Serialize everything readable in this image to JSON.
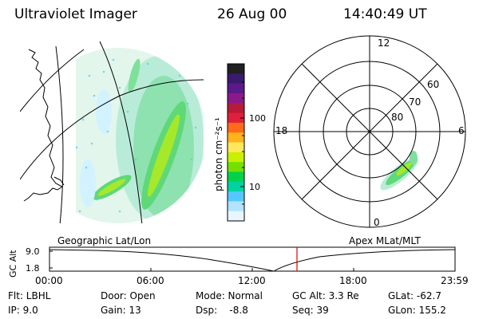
{
  "header": {
    "instrument": "Ultraviolet Imager",
    "date": "26 Aug 00",
    "time": "14:40:49 UT"
  },
  "colorbar": {
    "unit_label": "photon cm⁻²s⁻¹",
    "ticks": [
      "100",
      "10"
    ],
    "colors": [
      "#202020",
      "#3a1a6a",
      "#5a1a8a",
      "#8a1a8a",
      "#b81a3a",
      "#e0203a",
      "#ff6a1a",
      "#ffb21a",
      "#ffe85a",
      "#c8f000",
      "#74e000",
      "#00d24a",
      "#00d2a0",
      "#55c8ff",
      "#b0e4ff",
      "#e8f6ff"
    ]
  },
  "left_panel": {
    "caption": "Geographic Lat/Lon"
  },
  "right_panel": {
    "caption": "Apex MLat/MLT",
    "mlt_labels": [
      "12",
      "18",
      "6",
      "0"
    ],
    "lat_labels": [
      "60",
      "70",
      "80"
    ]
  },
  "alt_plot": {
    "ylabel": "GC Alt",
    "yticks": [
      "9.0",
      "1.8"
    ],
    "xticks": [
      "00:00",
      "06:00",
      "12:00",
      "18:00",
      "23:59"
    ],
    "marker_color": "#e00000"
  },
  "info": {
    "flt": "Flt: LBHL",
    "door": "Door: Open",
    "mode": "Mode: Normal",
    "gc_alt": "GC Alt: 3.3 Re",
    "glat": "GLat: -62.7",
    "ip": "IP: 9.0",
    "gain": "Gain: 13",
    "dsp": "Dsp:    -8.8",
    "seq": "Seq: 39",
    "glon": "GLon: 155.2"
  }
}
